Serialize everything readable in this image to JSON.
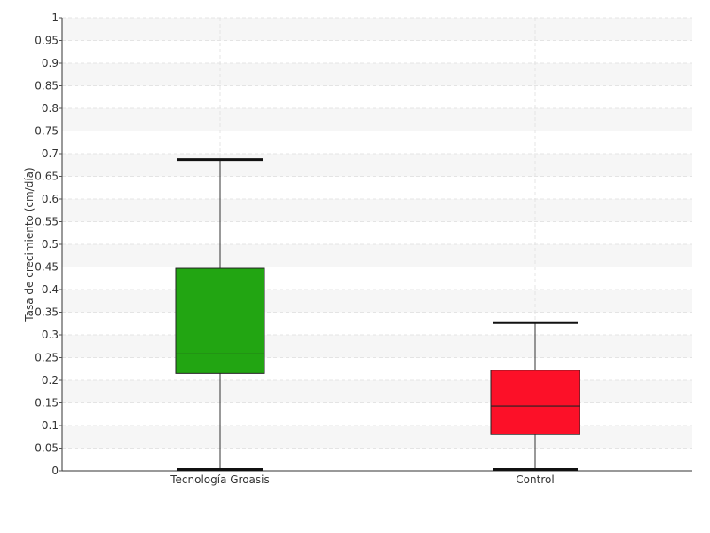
{
  "chart_data": {
    "type": "box",
    "title": "",
    "xlabel": "",
    "ylabel": "Tasa de crecimiento (cm/día)",
    "ylim": [
      0,
      1
    ],
    "y_ticks": [
      "0",
      "0.05",
      "0.1",
      "0.15",
      "0.2",
      "0.25",
      "0.3",
      "0.35",
      "0.4",
      "0.45",
      "0.5",
      "0.55",
      "0.6",
      "0.65",
      "0.7",
      "0.75",
      "0.8",
      "0.85",
      "0.9",
      "0.95",
      "1"
    ],
    "categories": [
      "Tecnología Groasis",
      "Control"
    ],
    "boxes": [
      {
        "category": "Tecnología Groasis",
        "min": 0.0,
        "q1": 0.215,
        "median": 0.258,
        "q3": 0.447,
        "max": 0.687,
        "color": "#22a512"
      },
      {
        "category": "Control",
        "min": 0.0,
        "q1": 0.08,
        "median": 0.143,
        "q3": 0.222,
        "max": 0.327,
        "color": "#fc1028"
      }
    ],
    "grid": true,
    "legend": "none"
  }
}
